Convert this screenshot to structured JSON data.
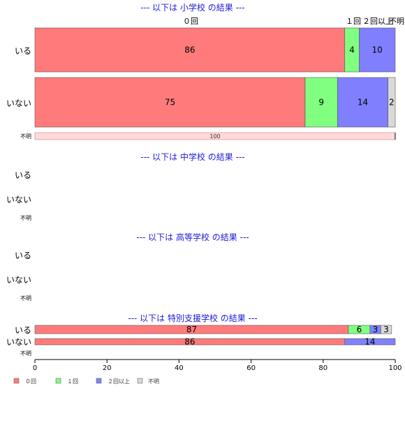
{
  "chart_data": {
    "type": "bar",
    "orientation": "horizontal",
    "stacked": true,
    "xlim": [
      0,
      100
    ],
    "x_ticks": [
      "0",
      "20",
      "40",
      "60",
      "80",
      "100"
    ],
    "category_labels_top": [
      "０回",
      "１回",
      "２回以上",
      "不明"
    ],
    "legend": {
      "position": "bottom-left",
      "entries": [
        {
          "label": "０回",
          "color": "#ff7b7b"
        },
        {
          "label": "１回",
          "color": "#80ff80"
        },
        {
          "label": "２回以上",
          "color": "#8080ff"
        },
        {
          "label": "不明",
          "color": "#d9d9d9"
        }
      ]
    },
    "series_colors": [
      "#ff7b7b",
      "#80ff80",
      "#8080ff",
      "#d9d9d9"
    ],
    "fumei_bar_color": "#ffd9d9",
    "sections": [
      {
        "title": "--- 以下は 小学校 の結果 ---",
        "rows": [
          {
            "label": "いる",
            "values": [
              86,
              4,
              10,
              0
            ],
            "labels": [
              "86",
              "4",
              "10",
              ""
            ]
          },
          {
            "label": "いない",
            "values": [
              75,
              9,
              14,
              2
            ],
            "labels": [
              "75",
              "9",
              "14",
              "2"
            ]
          }
        ],
        "fumei": {
          "label": "不明",
          "value": 100,
          "text": "100"
        }
      },
      {
        "title": "--- 以下は 中学校 の結果 ---",
        "rows": [
          {
            "label": "いる",
            "values": [],
            "labels": []
          },
          {
            "label": "いない",
            "values": [],
            "labels": []
          }
        ],
        "fumei": {
          "label": "不明",
          "value": 0,
          "text": ""
        }
      },
      {
        "title": "--- 以下は 高等学校 の結果 ---",
        "rows": [
          {
            "label": "いる",
            "values": [],
            "labels": []
          },
          {
            "label": "いない",
            "values": [],
            "labels": []
          }
        ],
        "fumei": {
          "label": "不明",
          "value": 0,
          "text": ""
        }
      },
      {
        "title": "--- 以下は 特別支援学校 の結果 ---",
        "rows": [
          {
            "label": "いる",
            "values": [
              87,
              6,
              3,
              3
            ],
            "labels": [
              "87",
              "6",
              "3",
              "3"
            ]
          },
          {
            "label": "いない",
            "values": [
              86,
              0,
              14,
              0
            ],
            "labels": [
              "86",
              "",
              "14",
              ""
            ]
          }
        ],
        "fumei": {
          "label": "不明",
          "value": 0,
          "text": ""
        }
      }
    ]
  }
}
